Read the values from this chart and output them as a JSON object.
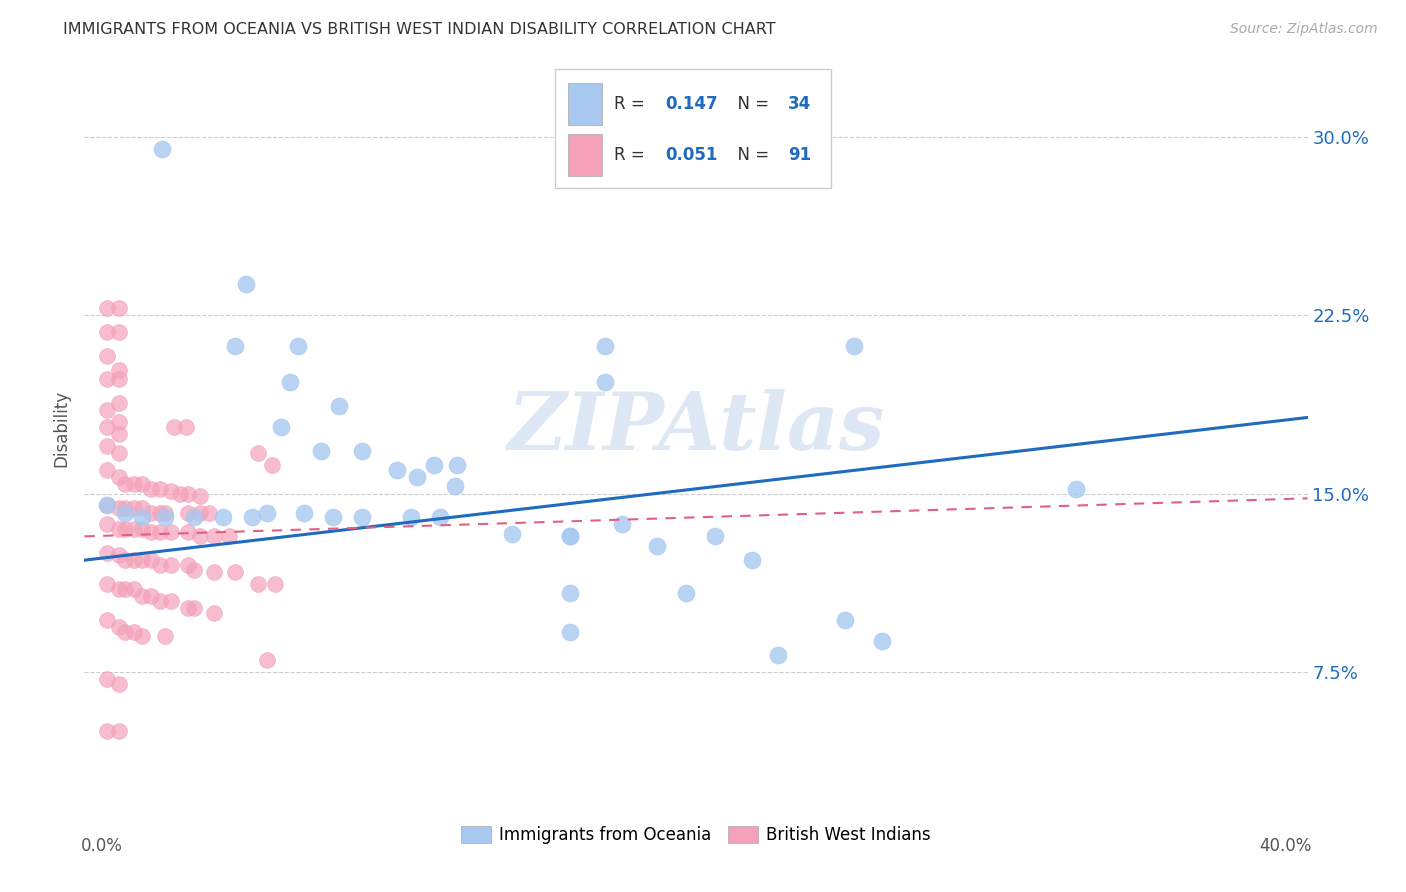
{
  "title": "IMMIGRANTS FROM OCEANIA VS BRITISH WEST INDIAN DISABILITY CORRELATION CHART",
  "source": "Source: ZipAtlas.com",
  "ylabel": "Disability",
  "yticks": [
    0.075,
    0.15,
    0.225,
    0.3
  ],
  "ytick_labels": [
    "7.5%",
    "15.0%",
    "22.5%",
    "30.0%"
  ],
  "xlim": [
    -0.008,
    0.415
  ],
  "ylim": [
    0.02,
    0.335
  ],
  "blue_R": 0.147,
  "blue_N": 34,
  "pink_R": 0.051,
  "pink_N": 91,
  "blue_color": "#a8c8f0",
  "pink_color": "#f4a0b8",
  "blue_line_color": "#1e6bbf",
  "pink_line_color": "#e06080",
  "watermark": "ZIPAtlas",
  "legend_label_blue": "Immigrants from Oceania",
  "legend_label_pink": "British West Indians",
  "blue_line_x0": -0.008,
  "blue_line_y0": 0.122,
  "blue_line_x1": 0.415,
  "blue_line_y1": 0.182,
  "pink_line_x0": -0.008,
  "pink_line_y0": 0.132,
  "pink_line_x1": 0.415,
  "pink_line_y1": 0.148,
  "blue_scatter": [
    [
      0.019,
      0.295
    ],
    [
      0.048,
      0.238
    ],
    [
      0.044,
      0.212
    ],
    [
      0.066,
      0.212
    ],
    [
      0.172,
      0.212
    ],
    [
      0.258,
      0.212
    ],
    [
      0.172,
      0.197
    ],
    [
      0.063,
      0.197
    ],
    [
      0.08,
      0.187
    ],
    [
      0.06,
      0.178
    ],
    [
      0.074,
      0.168
    ],
    [
      0.088,
      0.168
    ],
    [
      0.1,
      0.16
    ],
    [
      0.113,
      0.162
    ],
    [
      0.107,
      0.157
    ],
    [
      0.121,
      0.162
    ],
    [
      0.335,
      0.152
    ],
    [
      0.12,
      0.153
    ],
    [
      0.0,
      0.145
    ],
    [
      0.006,
      0.142
    ],
    [
      0.012,
      0.14
    ],
    [
      0.02,
      0.14
    ],
    [
      0.03,
      0.14
    ],
    [
      0.04,
      0.14
    ],
    [
      0.05,
      0.14
    ],
    [
      0.055,
      0.142
    ],
    [
      0.068,
      0.142
    ],
    [
      0.078,
      0.14
    ],
    [
      0.088,
      0.14
    ],
    [
      0.105,
      0.14
    ],
    [
      0.115,
      0.14
    ],
    [
      0.14,
      0.133
    ],
    [
      0.16,
      0.132
    ],
    [
      0.19,
      0.128
    ],
    [
      0.16,
      0.132
    ],
    [
      0.178,
      0.137
    ],
    [
      0.21,
      0.132
    ],
    [
      0.223,
      0.122
    ],
    [
      0.16,
      0.108
    ],
    [
      0.2,
      0.108
    ],
    [
      0.255,
      0.097
    ],
    [
      0.268,
      0.088
    ],
    [
      0.16,
      0.092
    ],
    [
      0.232,
      0.082
    ]
  ],
  "pink_scatter": [
    [
      0.0,
      0.228
    ],
    [
      0.004,
      0.228
    ],
    [
      0.0,
      0.218
    ],
    [
      0.004,
      0.218
    ],
    [
      0.0,
      0.208
    ],
    [
      0.004,
      0.202
    ],
    [
      0.0,
      0.198
    ],
    [
      0.004,
      0.198
    ],
    [
      0.004,
      0.188
    ],
    [
      0.0,
      0.185
    ],
    [
      0.004,
      0.18
    ],
    [
      0.0,
      0.178
    ],
    [
      0.004,
      0.175
    ],
    [
      0.0,
      0.17
    ],
    [
      0.004,
      0.167
    ],
    [
      0.023,
      0.178
    ],
    [
      0.027,
      0.178
    ],
    [
      0.052,
      0.167
    ],
    [
      0.057,
      0.162
    ],
    [
      0.0,
      0.16
    ],
    [
      0.004,
      0.157
    ],
    [
      0.006,
      0.154
    ],
    [
      0.009,
      0.154
    ],
    [
      0.012,
      0.154
    ],
    [
      0.015,
      0.152
    ],
    [
      0.018,
      0.152
    ],
    [
      0.022,
      0.151
    ],
    [
      0.025,
      0.15
    ],
    [
      0.028,
      0.15
    ],
    [
      0.032,
      0.149
    ],
    [
      0.0,
      0.145
    ],
    [
      0.004,
      0.144
    ],
    [
      0.006,
      0.144
    ],
    [
      0.009,
      0.144
    ],
    [
      0.012,
      0.144
    ],
    [
      0.015,
      0.142
    ],
    [
      0.018,
      0.142
    ],
    [
      0.02,
      0.142
    ],
    [
      0.028,
      0.142
    ],
    [
      0.032,
      0.142
    ],
    [
      0.035,
      0.142
    ],
    [
      0.0,
      0.137
    ],
    [
      0.004,
      0.135
    ],
    [
      0.006,
      0.135
    ],
    [
      0.009,
      0.135
    ],
    [
      0.012,
      0.135
    ],
    [
      0.015,
      0.134
    ],
    [
      0.018,
      0.134
    ],
    [
      0.022,
      0.134
    ],
    [
      0.028,
      0.134
    ],
    [
      0.032,
      0.132
    ],
    [
      0.037,
      0.132
    ],
    [
      0.042,
      0.132
    ],
    [
      0.0,
      0.125
    ],
    [
      0.004,
      0.124
    ],
    [
      0.006,
      0.122
    ],
    [
      0.009,
      0.122
    ],
    [
      0.012,
      0.122
    ],
    [
      0.015,
      0.122
    ],
    [
      0.018,
      0.12
    ],
    [
      0.022,
      0.12
    ],
    [
      0.028,
      0.12
    ],
    [
      0.03,
      0.118
    ],
    [
      0.037,
      0.117
    ],
    [
      0.044,
      0.117
    ],
    [
      0.052,
      0.112
    ],
    [
      0.058,
      0.112
    ],
    [
      0.0,
      0.112
    ],
    [
      0.004,
      0.11
    ],
    [
      0.006,
      0.11
    ],
    [
      0.009,
      0.11
    ],
    [
      0.012,
      0.107
    ],
    [
      0.015,
      0.107
    ],
    [
      0.018,
      0.105
    ],
    [
      0.022,
      0.105
    ],
    [
      0.028,
      0.102
    ],
    [
      0.03,
      0.102
    ],
    [
      0.037,
      0.1
    ],
    [
      0.0,
      0.097
    ],
    [
      0.004,
      0.094
    ],
    [
      0.006,
      0.092
    ],
    [
      0.009,
      0.092
    ],
    [
      0.012,
      0.09
    ],
    [
      0.02,
      0.09
    ],
    [
      0.055,
      0.08
    ],
    [
      0.0,
      0.072
    ],
    [
      0.004,
      0.07
    ],
    [
      0.0,
      0.05
    ],
    [
      0.004,
      0.05
    ]
  ]
}
